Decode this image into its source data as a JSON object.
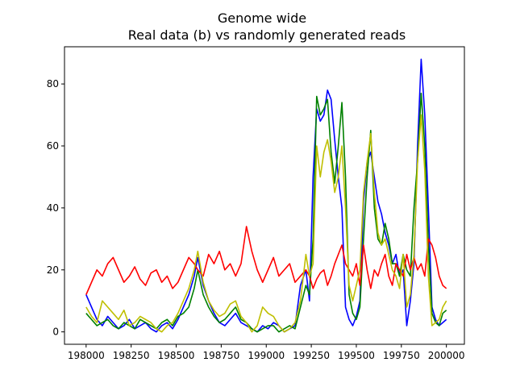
{
  "chart_data": {
    "type": "line",
    "title": "Genome wide",
    "subtitle": "Real data (b) vs randomly generated reads",
    "xlabel": "",
    "ylabel": "",
    "xlim": [
      197880,
      200100
    ],
    "ylim": [
      -4,
      92
    ],
    "xticks": [
      198000,
      198250,
      198500,
      198750,
      199000,
      199250,
      199500,
      199750,
      200000
    ],
    "yticks": [
      0,
      20,
      40,
      60,
      80
    ],
    "grid": false,
    "series": [
      {
        "color": "#0000ff",
        "x": [
          198000,
          198030,
          198060,
          198090,
          198120,
          198150,
          198180,
          198210,
          198240,
          198270,
          198300,
          198330,
          198360,
          198390,
          198420,
          198450,
          198480,
          198510,
          198540,
          198570,
          198600,
          198620,
          198650,
          198680,
          198710,
          198740,
          198770,
          198800,
          198830,
          198860,
          198890,
          198920,
          198950,
          198980,
          199010,
          199040,
          199070,
          199100,
          199130,
          199160,
          199190,
          199220,
          199240,
          199260,
          199280,
          199300,
          199320,
          199340,
          199360,
          199380,
          199400,
          199420,
          199440,
          199460,
          199480,
          199500,
          199520,
          199540,
          199560,
          199580,
          199600,
          199620,
          199640,
          199660,
          199680,
          199700,
          199720,
          199740,
          199760,
          199780,
          199800,
          199820,
          199840,
          199860,
          199880,
          199900,
          199920,
          199940,
          199960,
          199980,
          200000
        ],
        "y": [
          12,
          8,
          4,
          2,
          5,
          3,
          1,
          2,
          4,
          1,
          2,
          3,
          1,
          0,
          2,
          3,
          1,
          4,
          8,
          12,
          18,
          24,
          15,
          10,
          6,
          3,
          2,
          4,
          6,
          3,
          2,
          1,
          0,
          2,
          1,
          3,
          2,
          0,
          1,
          2,
          15,
          20,
          10,
          50,
          72,
          68,
          70,
          78,
          75,
          62,
          50,
          40,
          8,
          4,
          2,
          5,
          10,
          42,
          55,
          58,
          50,
          42,
          38,
          32,
          28,
          22,
          25,
          18,
          20,
          2,
          10,
          22,
          60,
          88,
          70,
          40,
          8,
          4,
          2,
          3,
          4
        ]
      },
      {
        "color": "#008000",
        "x": [
          198000,
          198030,
          198060,
          198090,
          198120,
          198150,
          198180,
          198210,
          198240,
          198270,
          198300,
          198330,
          198360,
          198390,
          198420,
          198450,
          198480,
          198510,
          198540,
          198570,
          198600,
          198620,
          198650,
          198680,
          198710,
          198740,
          198770,
          198800,
          198830,
          198860,
          198890,
          198920,
          198950,
          198980,
          199010,
          199040,
          199070,
          199100,
          199130,
          199160,
          199190,
          199220,
          199240,
          199260,
          199280,
          199300,
          199320,
          199340,
          199360,
          199380,
          199400,
          199420,
          199440,
          199460,
          199480,
          199500,
          199520,
          199540,
          199560,
          199580,
          199600,
          199620,
          199640,
          199660,
          199680,
          199700,
          199720,
          199740,
          199760,
          199780,
          199800,
          199820,
          199840,
          199860,
          199880,
          199900,
          199920,
          199940,
          199960,
          199980,
          200000
        ],
        "y": [
          6,
          4,
          2,
          3,
          4,
          2,
          1,
          3,
          2,
          1,
          4,
          3,
          2,
          1,
          3,
          4,
          2,
          5,
          6,
          8,
          14,
          20,
          12,
          8,
          5,
          3,
          4,
          6,
          8,
          4,
          3,
          1,
          0,
          1,
          2,
          2,
          0,
          1,
          2,
          1,
          8,
          15,
          12,
          30,
          76,
          70,
          72,
          75,
          58,
          48,
          60,
          74,
          50,
          12,
          6,
          4,
          8,
          30,
          50,
          65,
          40,
          30,
          28,
          35,
          30,
          22,
          22,
          18,
          25,
          20,
          18,
          40,
          55,
          77,
          60,
          28,
          6,
          3,
          2,
          6,
          7
        ]
      },
      {
        "color": "#ff0000",
        "x": [
          198000,
          198030,
          198060,
          198090,
          198120,
          198150,
          198180,
          198210,
          198240,
          198270,
          198300,
          198330,
          198360,
          198390,
          198420,
          198450,
          198480,
          198510,
          198540,
          198570,
          198600,
          198620,
          198650,
          198680,
          198710,
          198740,
          198770,
          198800,
          198830,
          198860,
          198890,
          198920,
          198950,
          198980,
          199010,
          199040,
          199070,
          199100,
          199130,
          199160,
          199190,
          199220,
          199240,
          199260,
          199280,
          199300,
          199320,
          199340,
          199360,
          199380,
          199400,
          199420,
          199440,
          199460,
          199480,
          199500,
          199520,
          199540,
          199560,
          199580,
          199600,
          199620,
          199640,
          199660,
          199680,
          199700,
          199720,
          199740,
          199760,
          199780,
          199800,
          199820,
          199840,
          199860,
          199880,
          199900,
          199920,
          199940,
          199960,
          199980,
          200000
        ],
        "y": [
          12,
          16,
          20,
          18,
          22,
          24,
          20,
          16,
          18,
          21,
          17,
          15,
          19,
          20,
          16,
          18,
          14,
          16,
          20,
          24,
          22,
          20,
          18,
          25,
          22,
          26,
          20,
          22,
          18,
          22,
          34,
          26,
          20,
          16,
          20,
          24,
          18,
          20,
          22,
          16,
          18,
          20,
          18,
          14,
          17,
          19,
          20,
          15,
          18,
          22,
          25,
          28,
          22,
          20,
          18,
          22,
          15,
          28,
          20,
          14,
          20,
          18,
          22,
          25,
          18,
          15,
          22,
          20,
          18,
          25,
          20,
          24,
          20,
          22,
          18,
          30,
          28,
          24,
          18,
          15,
          14
        ]
      },
      {
        "color": "#bfbf00",
        "x": [
          198000,
          198030,
          198060,
          198090,
          198120,
          198150,
          198180,
          198210,
          198240,
          198270,
          198300,
          198330,
          198360,
          198390,
          198420,
          198450,
          198480,
          198510,
          198540,
          198570,
          198600,
          198620,
          198650,
          198680,
          198710,
          198740,
          198770,
          198800,
          198830,
          198860,
          198890,
          198920,
          198950,
          198980,
          199010,
          199040,
          199070,
          199100,
          199130,
          199160,
          199190,
          199220,
          199240,
          199260,
          199280,
          199300,
          199320,
          199340,
          199360,
          199380,
          199400,
          199420,
          199440,
          199460,
          199480,
          199500,
          199520,
          199540,
          199560,
          199580,
          199600,
          199620,
          199640,
          199660,
          199680,
          199700,
          199720,
          199740,
          199760,
          199780,
          199800,
          199820,
          199840,
          199860,
          199880,
          199900,
          199920,
          199940,
          199960,
          199980,
          200000
        ],
        "y": [
          8,
          5,
          3,
          10,
          8,
          6,
          4,
          7,
          2,
          3,
          5,
          4,
          3,
          1,
          0,
          2,
          3,
          6,
          10,
          14,
          20,
          26,
          16,
          10,
          7,
          5,
          6,
          9,
          10,
          5,
          3,
          0,
          2,
          8,
          6,
          5,
          2,
          0,
          1,
          3,
          10,
          25,
          18,
          22,
          60,
          50,
          58,
          62,
          55,
          45,
          50,
          60,
          40,
          15,
          10,
          15,
          20,
          45,
          55,
          64,
          45,
          32,
          28,
          30,
          25,
          20,
          18,
          14,
          25,
          8,
          12,
          25,
          55,
          70,
          52,
          18,
          2,
          3,
          4,
          8,
          10
        ]
      }
    ]
  }
}
